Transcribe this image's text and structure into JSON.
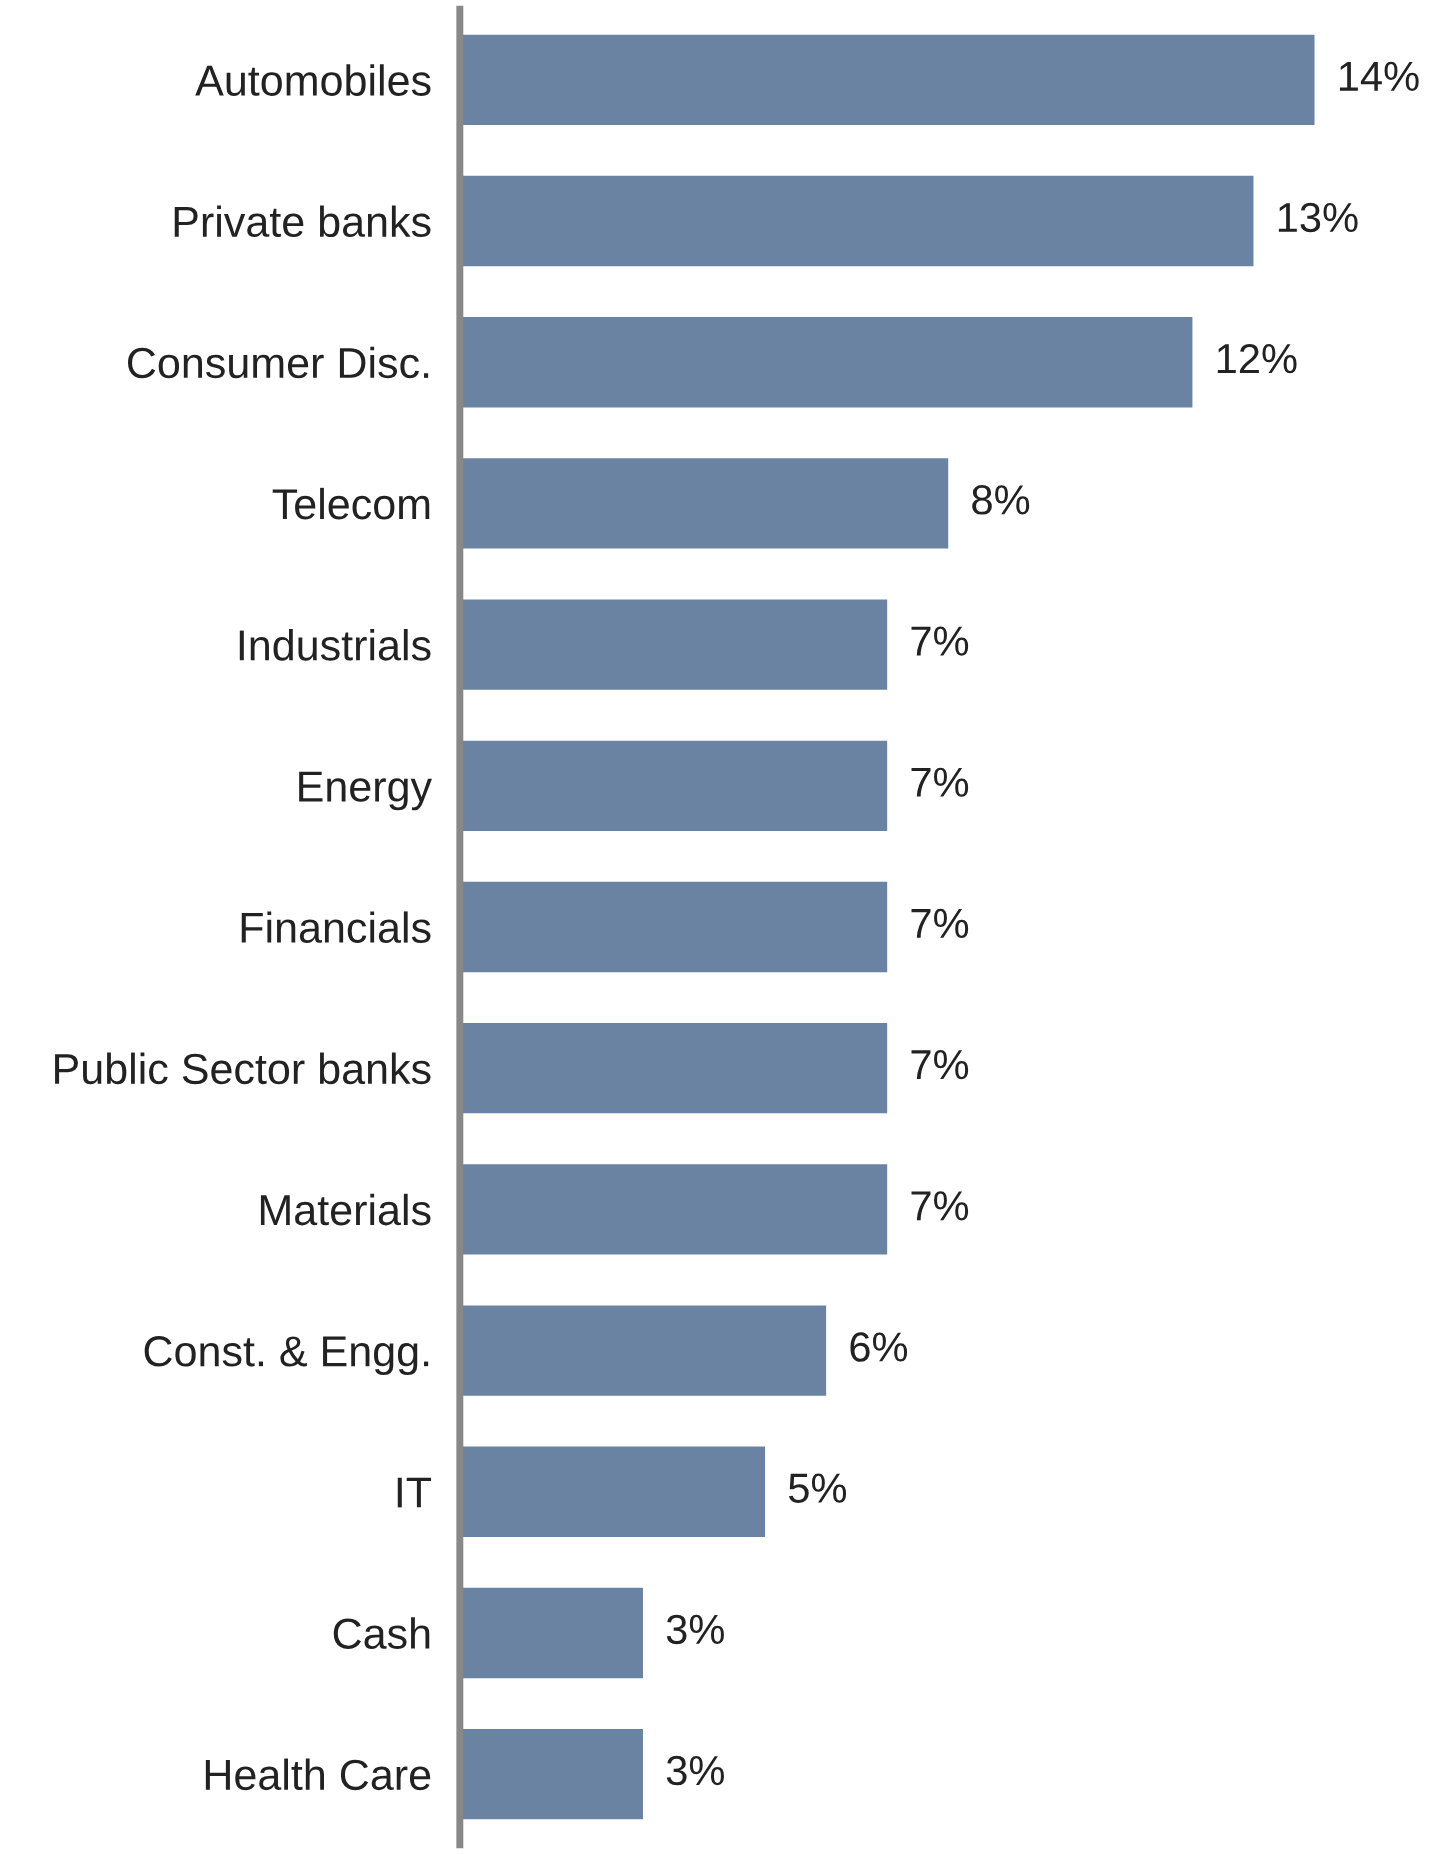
{
  "chart_data": {
    "type": "bar",
    "orientation": "horizontal",
    "categories": [
      "Automobiles",
      "Private banks",
      "Consumer Disc.",
      "Telecom",
      "Industrials",
      "Energy",
      "Financials",
      "Public Sector banks",
      "Materials",
      "Const. & Engg.",
      "IT",
      "Cash",
      "Health Care"
    ],
    "values": [
      14,
      13,
      12,
      8,
      7,
      7,
      7,
      7,
      7,
      6,
      5,
      3,
      3
    ],
    "value_labels": [
      "14%",
      "13%",
      "12%",
      "8%",
      "7%",
      "7%",
      "7%",
      "7%",
      "7%",
      "6%",
      "5%",
      "3%",
      "3%"
    ],
    "color": "#6b83a3",
    "tick_labels": "y",
    "grid": false,
    "legend": false
  }
}
